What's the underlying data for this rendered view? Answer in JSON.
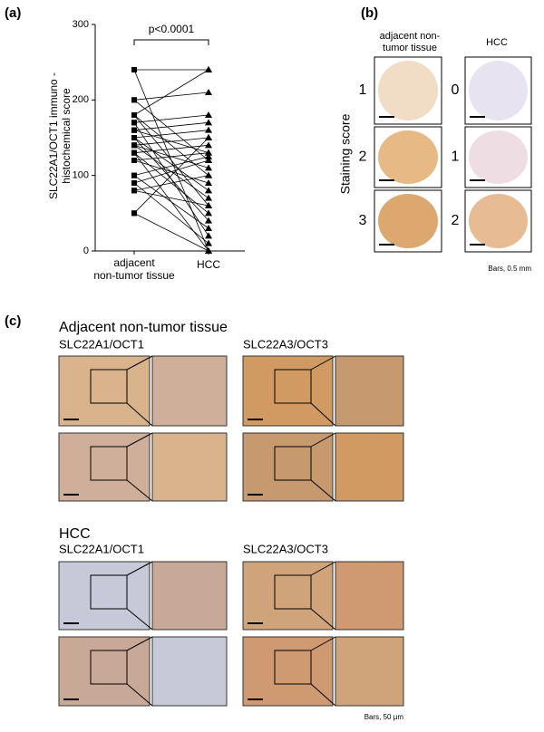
{
  "panel_labels": [
    "(a)",
    "(b)",
    "(c)"
  ],
  "chart_data": {
    "type": "paired",
    "ylabel_lines": [
      "SLC22A1/OCT1 immuno -",
      "histochemical  score"
    ],
    "categories": [
      [
        "adjacent",
        "non-tumor tissue"
      ],
      [
        "HCC"
      ]
    ],
    "annotation": "p<0.0001",
    "ylim": [
      0,
      300
    ],
    "yticks": [
      0,
      100,
      200,
      300
    ],
    "pairs": [
      [
        240,
        0
      ],
      [
        240,
        240
      ],
      [
        200,
        210
      ],
      [
        200,
        120
      ],
      [
        180,
        240
      ],
      [
        180,
        100
      ],
      [
        180,
        60
      ],
      [
        170,
        180
      ],
      [
        170,
        20
      ],
      [
        160,
        170
      ],
      [
        160,
        130
      ],
      [
        150,
        160
      ],
      [
        150,
        80
      ],
      [
        150,
        40
      ],
      [
        140,
        150
      ],
      [
        140,
        110
      ],
      [
        140,
        70
      ],
      [
        130,
        140
      ],
      [
        130,
        50
      ],
      [
        130,
        0
      ],
      [
        120,
        130
      ],
      [
        120,
        90
      ],
      [
        100,
        125
      ],
      [
        100,
        30
      ],
      [
        90,
        120
      ],
      [
        90,
        10
      ],
      [
        80,
        100
      ],
      [
        80,
        60
      ],
      [
        50,
        150
      ],
      [
        50,
        0
      ]
    ]
  },
  "panel_b": {
    "column_headers": [
      [
        "adjacent non-",
        "tumor tissue"
      ],
      [
        "HCC"
      ]
    ],
    "row_axis_label": "Staining score",
    "scores_left": [
      "1",
      "2",
      "3"
    ],
    "scores_right": [
      "0",
      "1",
      "2"
    ],
    "scale_note": "Bars, 0.5 mm"
  },
  "panel_c": {
    "sections": [
      {
        "title": "Adjacent non-tumor tissue",
        "markers": [
          "SLC22A1/OCT1",
          "SLC22A3/OCT3"
        ]
      },
      {
        "title": "HCC",
        "markers": [
          "SLC22A1/OCT1",
          "SLC22A3/OCT3"
        ]
      }
    ],
    "scale_note": "Bars, 50 μm"
  }
}
